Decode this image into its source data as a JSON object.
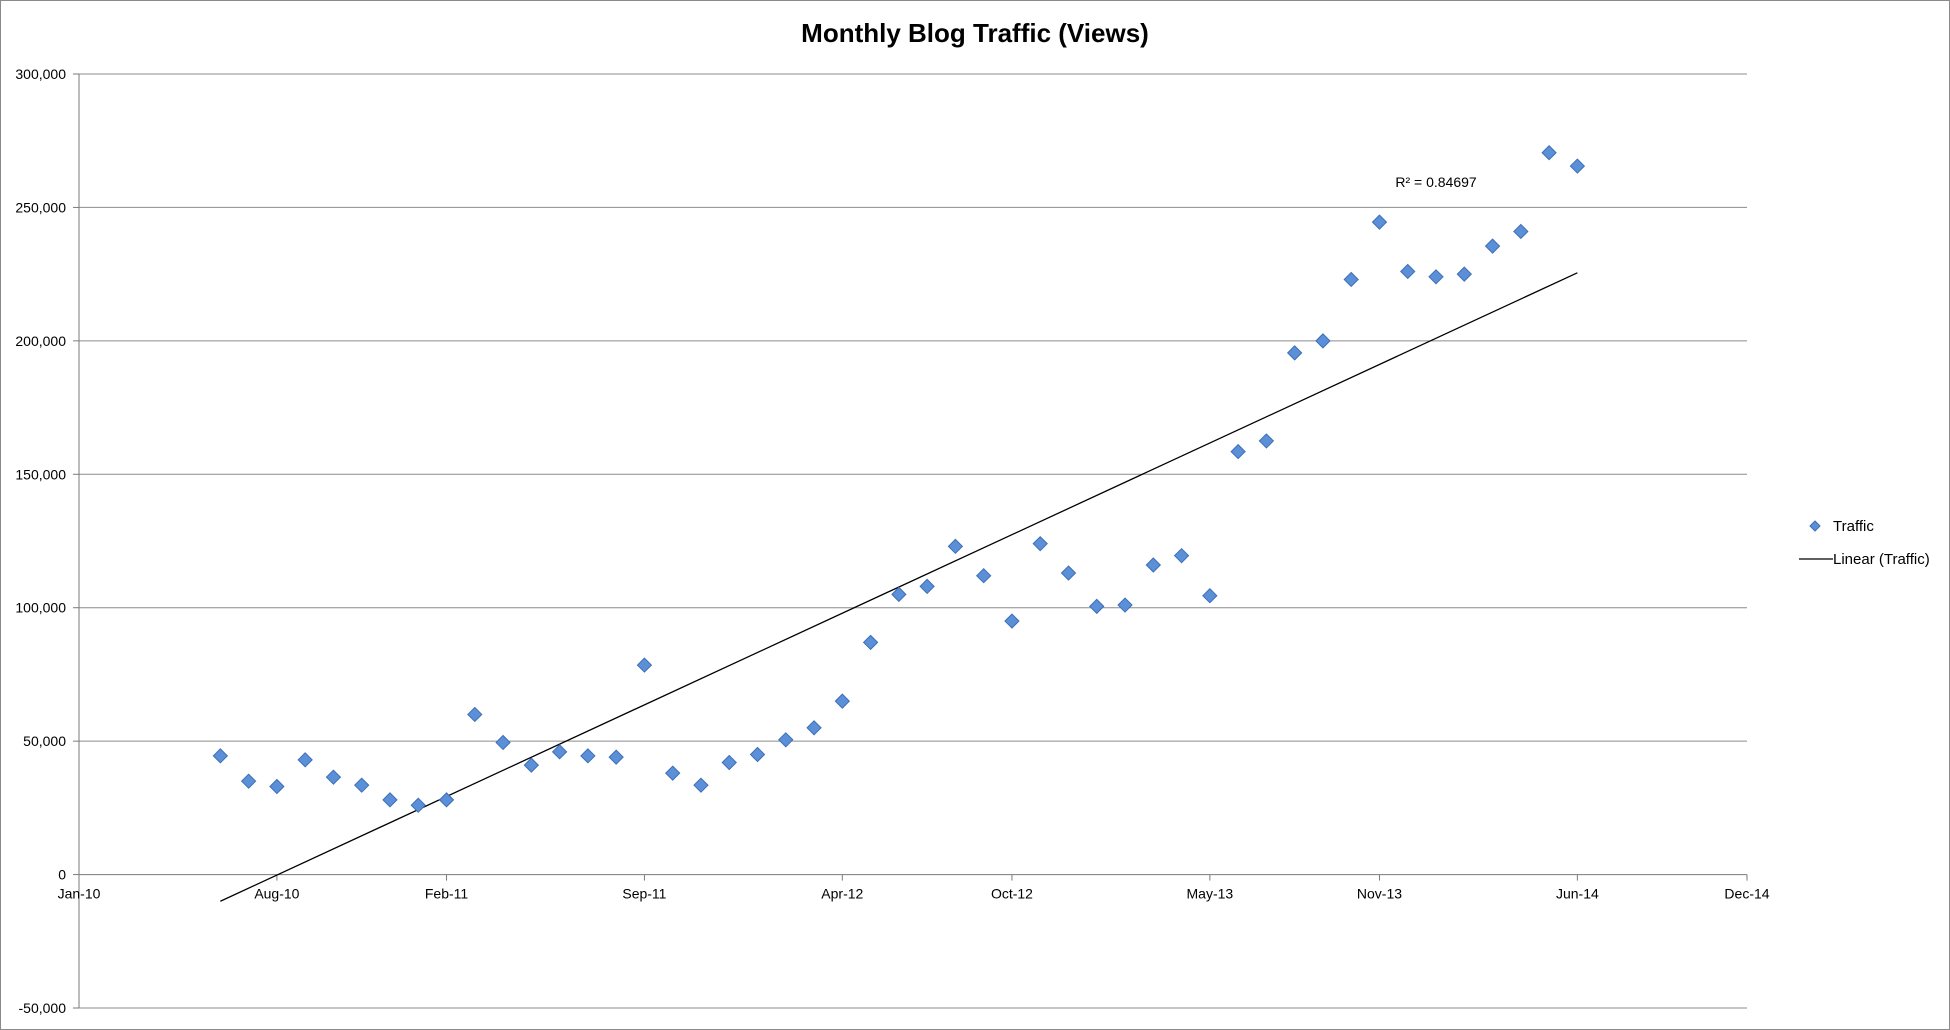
{
  "chart_data": {
    "type": "scatter",
    "title": "Monthly Blog Traffic (Views)",
    "xlabel": "",
    "ylabel": "",
    "x_axis": {
      "min": "Jan-10",
      "max": "Dec-14",
      "ticks": [
        "Jan-10",
        "Aug-10",
        "Feb-11",
        "Sep-11",
        "Apr-12",
        "Oct-12",
        "May-13",
        "Nov-13",
        "Jun-14",
        "Dec-14"
      ]
    },
    "y_axis": {
      "ylim": [
        -50000,
        300000
      ],
      "ticks": [
        -50000,
        0,
        50000,
        100000,
        150000,
        200000,
        250000,
        300000
      ],
      "tick_labels": [
        "-50,000",
        "0",
        "50,000",
        "100,000",
        "150,000",
        "200,000",
        "250,000",
        "300,000"
      ]
    },
    "grid": true,
    "legend_position": "right",
    "series": [
      {
        "name": "Traffic",
        "marker": "diamond",
        "color": "#5b8fd8",
        "points": [
          [
            "Jun-10",
            44500
          ],
          [
            "Jul-10",
            35000
          ],
          [
            "Aug-10",
            33000
          ],
          [
            "Sep-10",
            43000
          ],
          [
            "Oct-10",
            36500
          ],
          [
            "Nov-10",
            33500
          ],
          [
            "Dec-10",
            28000
          ],
          [
            "Jan-11",
            26000
          ],
          [
            "Feb-11",
            28000
          ],
          [
            "Mar-11",
            60000
          ],
          [
            "Apr-11",
            49500
          ],
          [
            "May-11",
            41000
          ],
          [
            "Jun-11",
            46000
          ],
          [
            "Jul-11",
            44500
          ],
          [
            "Aug-11",
            44000
          ],
          [
            "Sep-11",
            78500
          ],
          [
            "Oct-11",
            38000
          ],
          [
            "Nov-11",
            33500
          ],
          [
            "Dec-11",
            42000
          ],
          [
            "Jan-12",
            45000
          ],
          [
            "Feb-12",
            50500
          ],
          [
            "Mar-12",
            55000
          ],
          [
            "Apr-12",
            65000
          ],
          [
            "May-12",
            87000
          ],
          [
            "Jun-12",
            105000
          ],
          [
            "Jul-12",
            108000
          ],
          [
            "Aug-12",
            123000
          ],
          [
            "Sep-12",
            112000
          ],
          [
            "Oct-12",
            95000
          ],
          [
            "Nov-12",
            124000
          ],
          [
            "Dec-12",
            113000
          ],
          [
            "Jan-13",
            100500
          ],
          [
            "Feb-13",
            101000
          ],
          [
            "Mar-13",
            116000
          ],
          [
            "Apr-13",
            119500
          ],
          [
            "May-13",
            104500
          ],
          [
            "Jun-13",
            158500
          ],
          [
            "Jul-13",
            162500
          ],
          [
            "Aug-13",
            195500
          ],
          [
            "Sep-13",
            200000
          ],
          [
            "Oct-13",
            223000
          ],
          [
            "Nov-13",
            244500
          ],
          [
            "Dec-13",
            226000
          ],
          [
            "Jan-14",
            224000
          ],
          [
            "Feb-14",
            225000
          ],
          [
            "Mar-14",
            235500
          ],
          [
            "Apr-14",
            241000
          ],
          [
            "May-14",
            270500
          ],
          [
            "Jun-14",
            265500
          ]
        ]
      },
      {
        "name": "Linear (Traffic)",
        "type": "trendline",
        "color": "#000000",
        "from": [
          "Jun-10",
          -10000
        ],
        "to": [
          "Jun-14",
          225500
        ]
      }
    ],
    "annotations": [
      {
        "text": "R² = 0.84697",
        "anchor": [
          "Jan-14",
          259500
        ]
      }
    ]
  }
}
